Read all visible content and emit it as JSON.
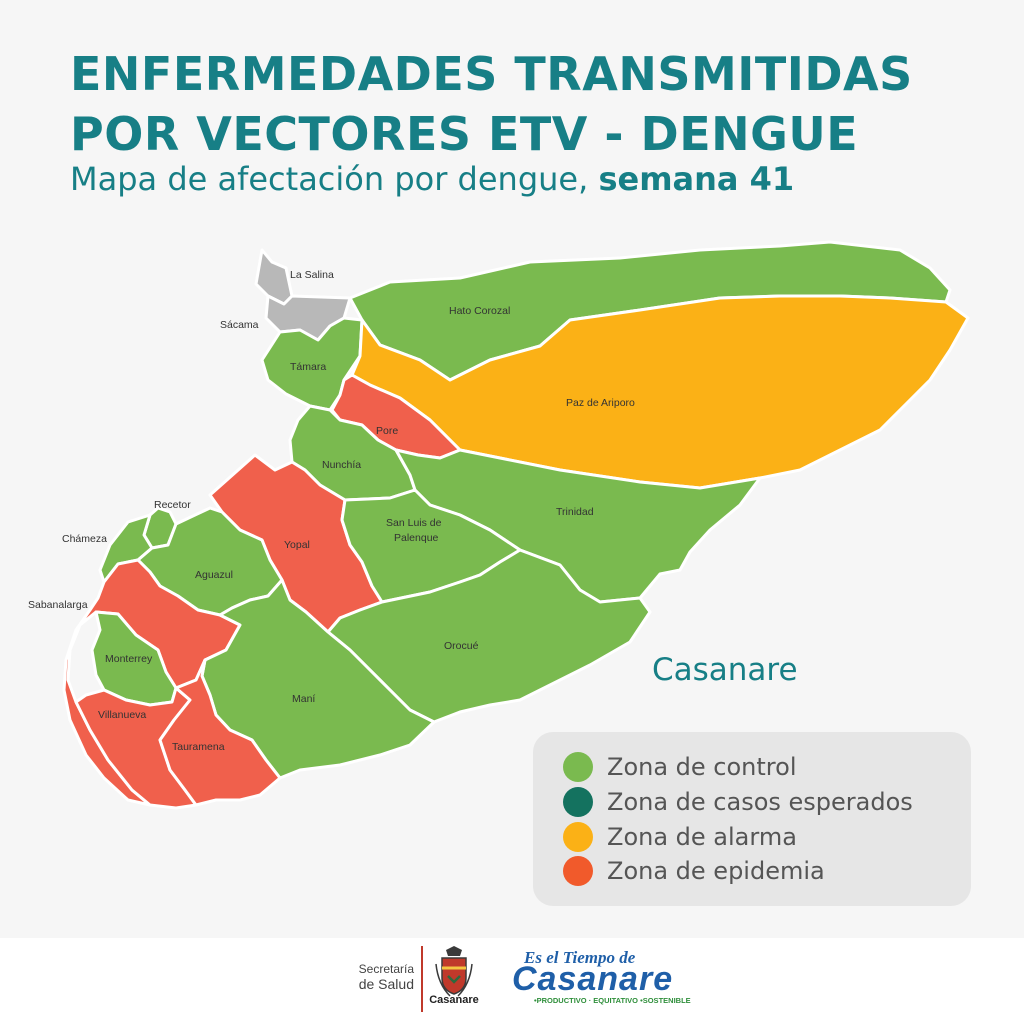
{
  "header": {
    "title_line1": "ENFERMEDADES TRANSMITIDAS",
    "title_line2": "POR VECTORES ETV - DENGUE",
    "subtitle_prefix": "Mapa de afectación por dengue, ",
    "subtitle_bold": "semana 41"
  },
  "map": {
    "region_name": "Casanare",
    "colors": {
      "control": "#7aba4f",
      "esperados": "#14725f",
      "alarma": "#fbb116",
      "epidemia": "#f0604c",
      "sin_dato": "#b8b8b8"
    },
    "municipalities": [
      {
        "name": "La Salina",
        "zone": "sin_dato"
      },
      {
        "name": "Sácama",
        "zone": "sin_dato"
      },
      {
        "name": "Hato Corozal",
        "zone": "control"
      },
      {
        "name": "Támara",
        "zone": "control"
      },
      {
        "name": "Paz de Ariporo",
        "zone": "alarma"
      },
      {
        "name": "Pore",
        "zone": "epidemia"
      },
      {
        "name": "Nunchía",
        "zone": "control"
      },
      {
        "name": "Recetor",
        "zone": "control"
      },
      {
        "name": "Yopal",
        "zone": "epidemia"
      },
      {
        "name": "Trinidad",
        "zone": "control"
      },
      {
        "name": "San Luis de Palenque",
        "zone": "control"
      },
      {
        "name": "Chámeza",
        "zone": "control"
      },
      {
        "name": "Aguazul",
        "zone": "control"
      },
      {
        "name": "Sabanalarga",
        "zone": "epidemia"
      },
      {
        "name": "Monterrey",
        "zone": "control"
      },
      {
        "name": "Orocué",
        "zone": "control"
      },
      {
        "name": "Maní",
        "zone": "control"
      },
      {
        "name": "Villanueva",
        "zone": "epidemia"
      },
      {
        "name": "Tauramena",
        "zone": "epidemia"
      }
    ]
  },
  "legend": [
    {
      "label": "Zona de control",
      "color": "#7aba4f"
    },
    {
      "label": "Zona de casos esperados",
      "color": "#14725f"
    },
    {
      "label": "Zona de alarma",
      "color": "#fbb116"
    },
    {
      "label": "Zona de epidemia",
      "color": "#f15a2b"
    }
  ],
  "footer": {
    "secretaria_line1": "Secretaría",
    "secretaria_line2": "de Salud",
    "crest_text": "Casanare",
    "slogan_top": "Es el Tiempo de",
    "slogan_main": "Casanare",
    "slogan_sub": "•PRODUCTIVO · EQUITATIVO •SOSTENIBLE",
    "crest_icon": "coat-of-arms-icon"
  }
}
